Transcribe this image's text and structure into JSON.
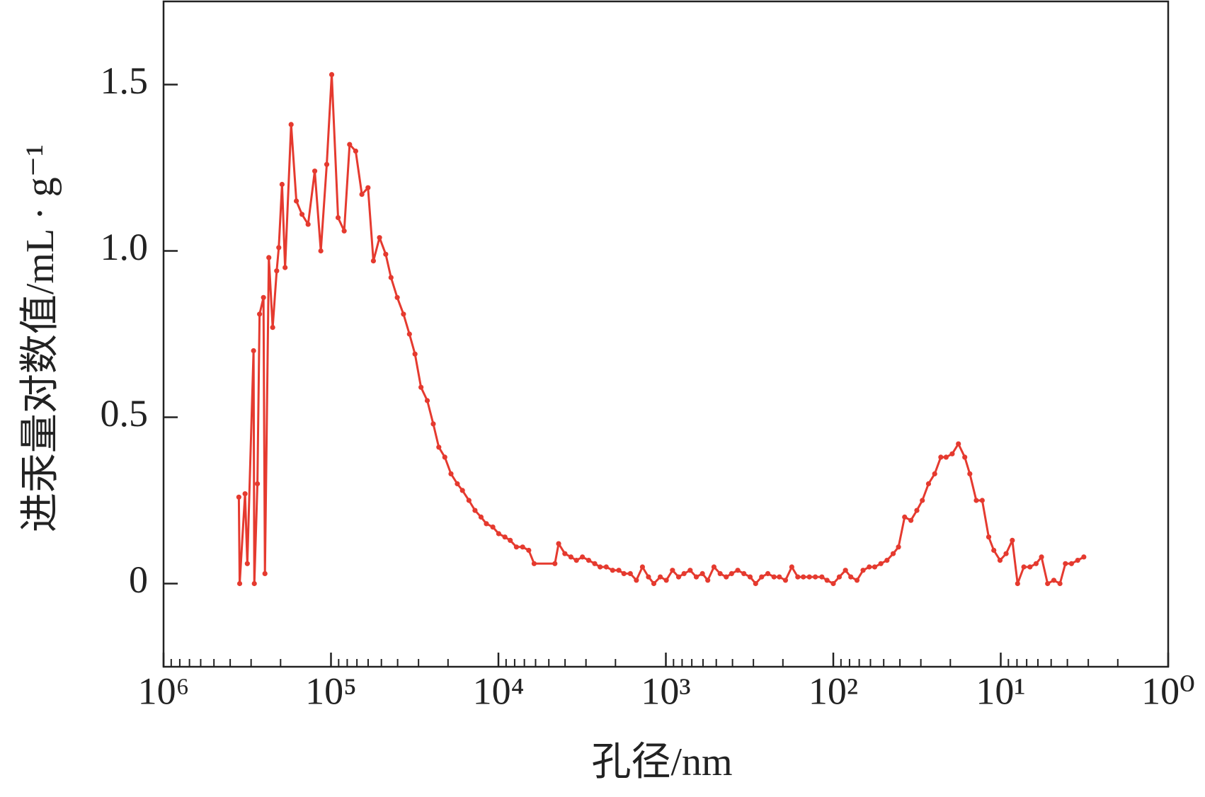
{
  "chart_data": {
    "type": "line",
    "x_label": "孔径/nm",
    "y_label": "进汞量对数值/mL · g⁻¹",
    "xscale": "log",
    "xlim": [
      1000000,
      1
    ],
    "ylim": [
      -0.25,
      1.75
    ],
    "xticks": [
      {
        "value": 1000000,
        "label": "10⁶"
      },
      {
        "value": 100000,
        "label": "10⁵"
      },
      {
        "value": 10000,
        "label": "10⁴"
      },
      {
        "value": 1000,
        "label": "10³"
      },
      {
        "value": 100,
        "label": "10²"
      },
      {
        "value": 10,
        "label": "10¹"
      },
      {
        "value": 1,
        "label": "10⁰"
      }
    ],
    "xminorticks": [
      900000,
      800000,
      700000,
      600000,
      500000,
      400000,
      300000,
      200000,
      90000,
      80000,
      70000,
      60000,
      50000,
      40000,
      30000,
      20000,
      9000,
      8000,
      7000,
      6000,
      5000,
      4000,
      3000,
      2000,
      900,
      800,
      700,
      600,
      500,
      400,
      300,
      200,
      90,
      80,
      70,
      60,
      50,
      40,
      30,
      20,
      9,
      8,
      7,
      6,
      5,
      4,
      3,
      2
    ],
    "yticks": [
      0,
      0.5,
      {
        "value": 1,
        "label": "1.0"
      },
      1.5
    ],
    "color": "#e53a2f",
    "x": [
      355000,
      351000,
      326000,
      316000,
      290000,
      287000,
      275000,
      267000,
      253000,
      248000,
      235000,
      223000,
      211000,
      205000,
      196000,
      188000,
      173000,
      161000,
      149000,
      137000,
      125000,
      115000,
      106000,
      99000,
      90700,
      83400,
      77400,
      71200,
      65400,
      60100,
      55800,
      51300,
      47100,
      43800,
      40200,
      36900,
      34000,
      31500,
      29000,
      26600,
      24500,
      22700,
      20900,
      19200,
      17600,
      16400,
      15000,
      13800,
      12700,
      11800,
      10800,
      9960,
      9150,
      8500,
      7810,
      7170,
      6590,
      6120,
      4600,
      4370,
      4010,
      3690,
      3420,
      3150,
      2890,
      2660,
      2470,
      2270,
      2080,
      1910,
      1780,
      1630,
      1500,
      1380,
      1270,
      1180,
      1080,
      994,
      913,
      839,
      779,
      716,
      658,
      605,
      562,
      516,
      474,
      436,
      405,
      372,
      342,
      314,
      291,
      268,
      246,
      226,
      210,
      193,
      177,
      163,
      151,
      139,
      128,
      117,
      109,
      100,
      92.1,
      84.6,
      78.6,
      72.2,
      66.4,
      61.0,
      56.6,
      52.0,
      47.8,
      43.9,
      40.8,
      37.5,
      34.4,
      31.7,
      29.4,
      27.0,
      24.8,
      22.8,
      21.2,
      19.5,
      17.9,
      16.4,
      15.3,
      14.0,
      12.9,
      11.8,
      11.0,
      10.1,
      9.29,
      8.53,
      7.93,
      7.28,
      6.69,
      6.15,
      5.71,
      5.25,
      4.82,
      4.43,
      4.11,
      3.78,
      3.47,
      3.19
    ],
    "values": [
      0.26,
      0,
      0.27,
      0.06,
      0.7,
      0,
      0.3,
      0.81,
      0.86,
      0.03,
      0.98,
      0.77,
      0.94,
      1.01,
      1.2,
      0.95,
      1.38,
      1.15,
      1.11,
      1.08,
      1.24,
      1.0,
      1.26,
      1.53,
      1.1,
      1.06,
      1.32,
      1.3,
      1.17,
      1.19,
      0.97,
      1.04,
      0.99,
      0.92,
      0.86,
      0.81,
      0.75,
      0.69,
      0.59,
      0.55,
      0.48,
      0.41,
      0.38,
      0.33,
      0.3,
      0.28,
      0.25,
      0.22,
      0.2,
      0.18,
      0.17,
      0.15,
      0.14,
      0.13,
      0.11,
      0.11,
      0.1,
      0.06,
      0.06,
      0.12,
      0.09,
      0.08,
      0.07,
      0.08,
      0.07,
      0.06,
      0.05,
      0.05,
      0.04,
      0.04,
      0.03,
      0.03,
      0.01,
      0.05,
      0.02,
      0.0,
      0.02,
      0.01,
      0.04,
      0.02,
      0.03,
      0.04,
      0.02,
      0.03,
      0.01,
      0.05,
      0.03,
      0.02,
      0.03,
      0.04,
      0.03,
      0.02,
      0.0,
      0.02,
      0.03,
      0.02,
      0.02,
      0.01,
      0.05,
      0.02,
      0.02,
      0.02,
      0.02,
      0.02,
      0.01,
      0.0,
      0.02,
      0.04,
      0.02,
      0.01,
      0.04,
      0.05,
      0.05,
      0.06,
      0.07,
      0.09,
      0.11,
      0.2,
      0.19,
      0.22,
      0.25,
      0.3,
      0.33,
      0.38,
      0.38,
      0.39,
      0.42,
      0.38,
      0.33,
      0.25,
      0.25,
      0.14,
      0.1,
      0.07,
      0.09,
      0.13,
      0.0,
      0.05,
      0.05,
      0.06,
      0.08,
      0.0,
      0.01,
      0.0,
      0.06,
      0.06,
      0.07,
      0.08
    ]
  }
}
